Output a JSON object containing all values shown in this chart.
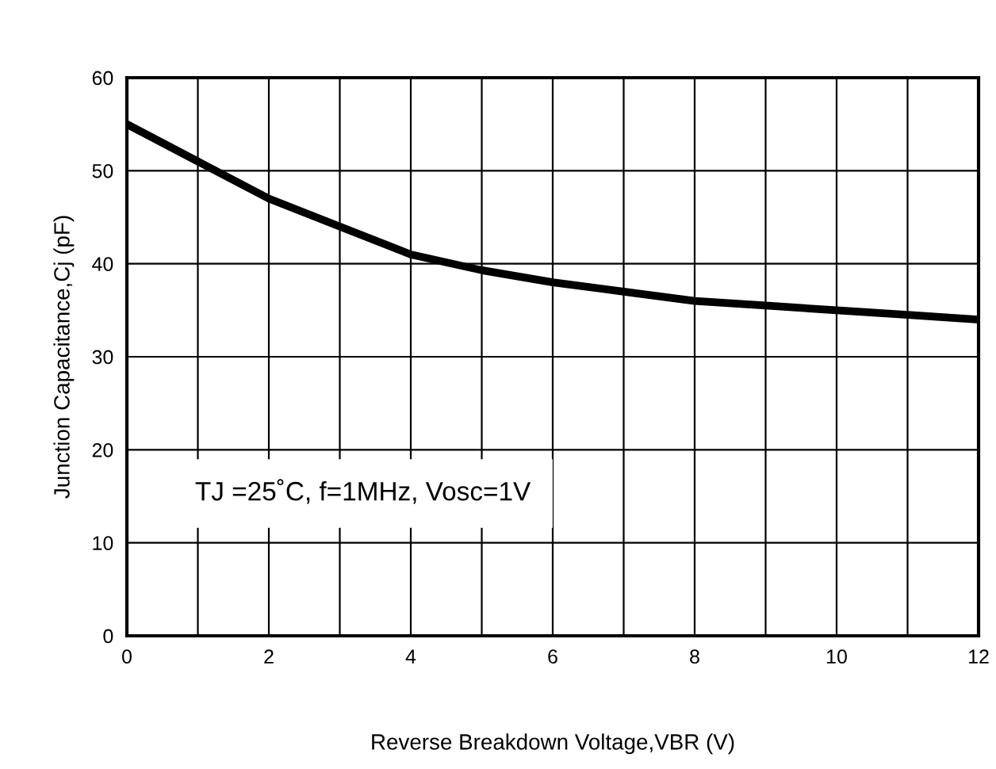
{
  "chart_data": {
    "type": "line",
    "xlabel": "Reverse Breakdown Voltage,VBR (V)",
    "ylabel": "Junction Capacitance,Cj (pF)",
    "annotations": [
      "TJ =25˚C, f=1MHz, Vosc=1V"
    ],
    "x": [
      0,
      1,
      2,
      3,
      4,
      5,
      6,
      7,
      8,
      9,
      10,
      11,
      12
    ],
    "series": [
      {
        "color": "#000000",
        "values": [
          55,
          51,
          47,
          44,
          41,
          39.3,
          38,
          37,
          36,
          35.5,
          35,
          34.5,
          34
        ]
      }
    ],
    "xlim": [
      0,
      12
    ],
    "ylim": [
      0,
      60
    ],
    "xticks": [
      0,
      {
        "value": 1,
        "label": null
      },
      2,
      {
        "value": 3,
        "label": null
      },
      4,
      {
        "value": 5,
        "label": null
      },
      6,
      {
        "value": 7,
        "label": null
      },
      8,
      {
        "value": 9,
        "label": null
      },
      10,
      {
        "value": 11,
        "label": null
      },
      12
    ],
    "yticks": [
      0,
      10,
      20,
      30,
      40,
      50,
      60
    ],
    "grid": true,
    "marker": "none",
    "line_style": "solid",
    "legend": false
  }
}
